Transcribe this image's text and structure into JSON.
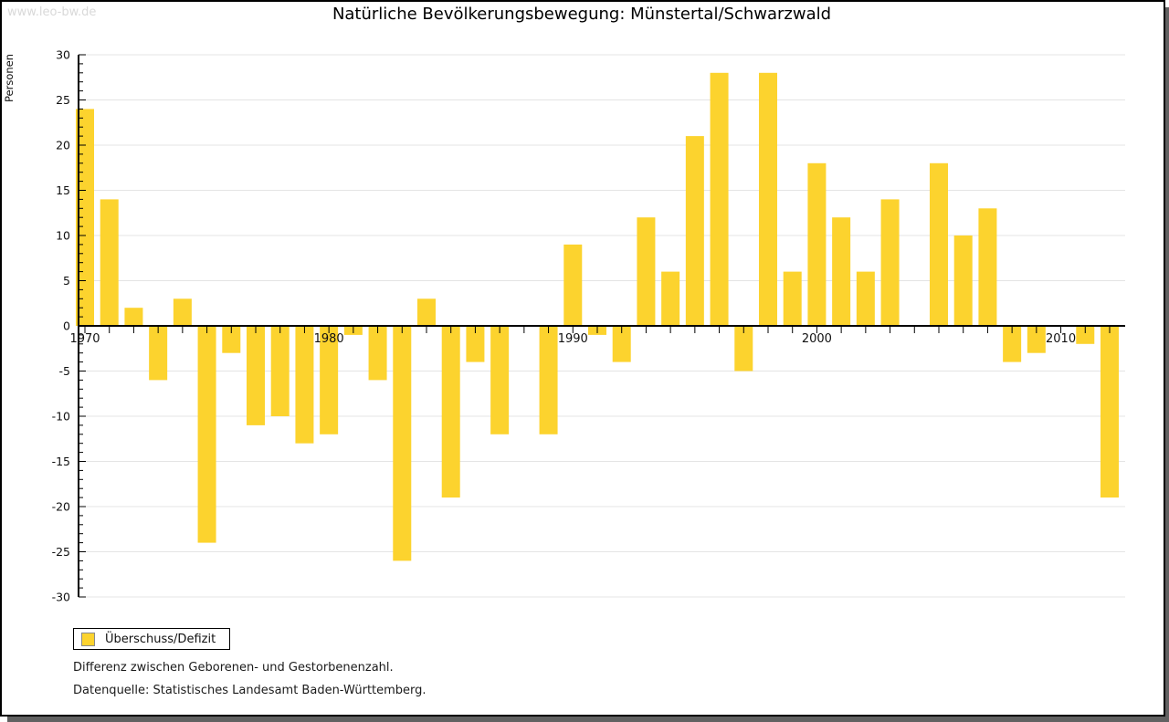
{
  "page": {
    "watermark": "www.leo-bw.de",
    "title": "Natürliche Bevölkerungsbewegung: Münstertal/Schwarzwald"
  },
  "chart_data": {
    "type": "bar",
    "title": "Natürliche Bevölkerungsbewegung: Münstertal/Schwarzwald",
    "xlabel": "",
    "ylabel": "Personen",
    "ylim": [
      -30,
      30
    ],
    "ytick_step": 5,
    "ytick_minor_step": 1,
    "grid": true,
    "legend_position": "bottom-left",
    "categories": [
      1970,
      1971,
      1972,
      1973,
      1974,
      1975,
      1976,
      1977,
      1978,
      1979,
      1980,
      1981,
      1982,
      1983,
      1984,
      1985,
      1986,
      1987,
      1988,
      1989,
      1990,
      1991,
      1992,
      1993,
      1994,
      1995,
      1996,
      1997,
      1998,
      1999,
      2000,
      2001,
      2002,
      2003,
      2004,
      2005,
      2006,
      2007,
      2008,
      2009,
      2010,
      2011,
      2012
    ],
    "series": [
      {
        "name": "Überschuss/Defizit",
        "values": [
          24,
          14,
          2,
          -6,
          3,
          -24,
          -3,
          -11,
          -10,
          -13,
          -12,
          -1,
          -6,
          -26,
          3,
          -19,
          -4,
          -12,
          0,
          -12,
          9,
          -1,
          -4,
          12,
          6,
          21,
          28,
          -5,
          28,
          6,
          18,
          12,
          6,
          14,
          0,
          18,
          10,
          13,
          -4,
          -3,
          0,
          -2,
          -19
        ]
      }
    ],
    "xtick_labels": [
      "1970",
      "1980",
      "1990",
      "2000",
      "2010"
    ],
    "colors": {
      "bar": "#FCD32E",
      "grid": "#E4E4E4",
      "axis": "#000000",
      "tick_text": "#111111"
    }
  },
  "legend": {
    "label": "Überschuss/Defizit",
    "swatch_color": "#FCD32E"
  },
  "footnotes": {
    "line1": "Differenz zwischen Geborenen- und Gestorbenenzahl.",
    "line2": "Datenquelle: Statistisches Landesamt Baden-Württemberg."
  }
}
